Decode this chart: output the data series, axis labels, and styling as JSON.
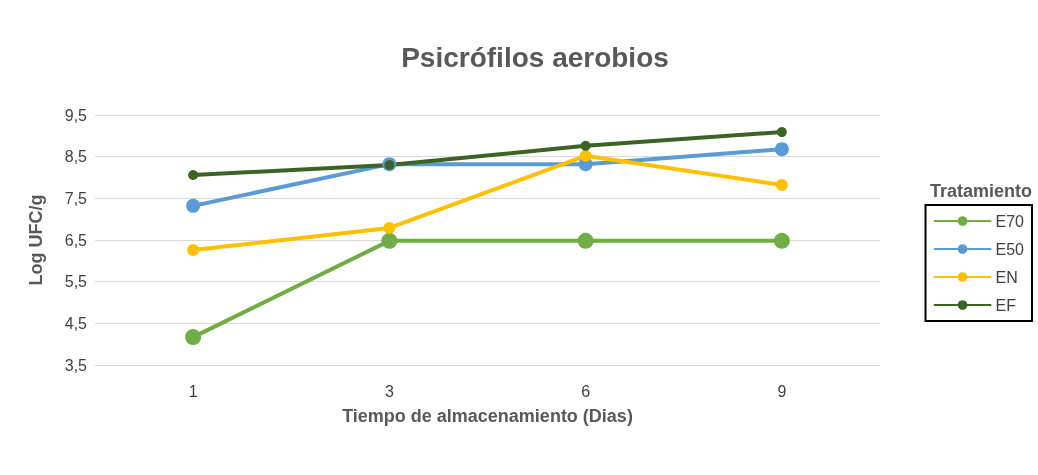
{
  "chart_data": {
    "type": "line",
    "title": "Psicrófilos aerobios",
    "xlabel": "Tiempo de almacenamiento (Dias)",
    "ylabel": "Log UFC/g",
    "legend_title": "Tratamiento",
    "categories": [
      "1",
      "3",
      "6",
      "9"
    ],
    "series": [
      {
        "name": "E70",
        "color": "#70ad47",
        "values": [
          4.17,
          6.48,
          6.48,
          6.48
        ]
      },
      {
        "name": "E50",
        "color": "#5b9bd5",
        "values": [
          7.32,
          8.32,
          8.32,
          8.68
        ]
      },
      {
        "name": "EN",
        "color": "#ffc000",
        "values": [
          6.26,
          6.79,
          8.52,
          7.82
        ]
      },
      {
        "name": "EF",
        "color": "#3b6424",
        "values": [
          8.06,
          8.3,
          8.76,
          9.09
        ]
      }
    ],
    "ylim": [
      3.5,
      9.5
    ],
    "yticks": [
      {
        "value": 3.5,
        "label": "3,5"
      },
      {
        "value": 4.5,
        "label": "4,5"
      },
      {
        "value": 5.5,
        "label": "5,5"
      },
      {
        "value": 6.5,
        "label": "6,5"
      },
      {
        "value": 7.5,
        "label": "7,5"
      },
      {
        "value": 8.5,
        "label": "8,5"
      },
      {
        "value": 9.5,
        "label": "9,5"
      }
    ],
    "grid": "y",
    "legend": "right",
    "marker": "circle",
    "line_style": "solid"
  }
}
